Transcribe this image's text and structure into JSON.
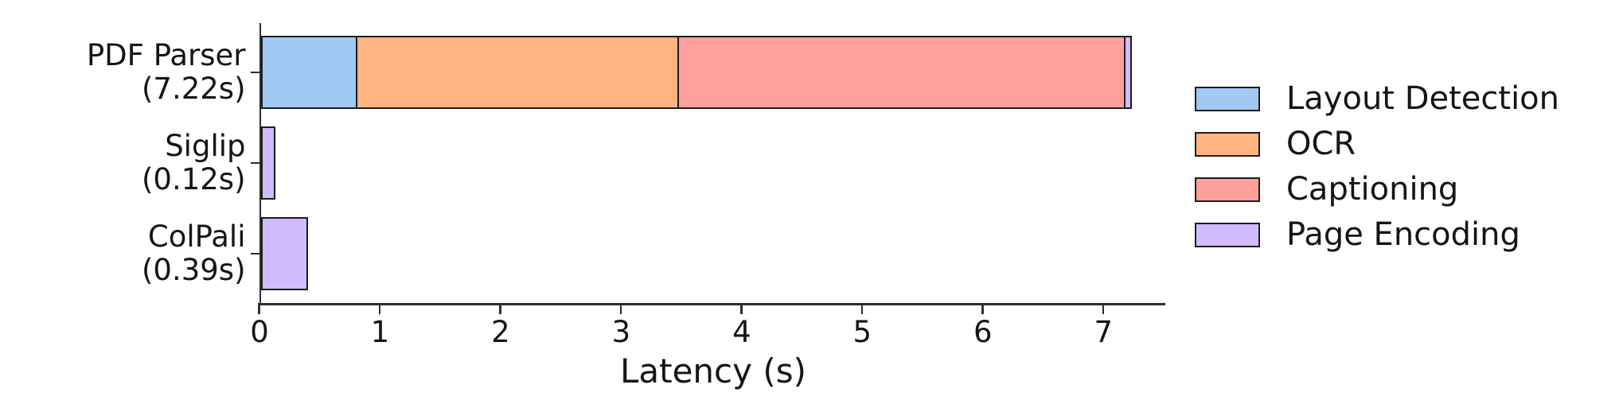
{
  "chart_data": {
    "type": "bar",
    "orientation": "horizontal-stacked",
    "title": "",
    "xlabel": "Latency (s)",
    "ylabel": "",
    "xlim": [
      0,
      7.5
    ],
    "x_ticks": [
      0,
      1,
      2,
      3,
      4,
      5,
      6,
      7
    ],
    "grid": false,
    "background": "#ffffff",
    "axis_color": "#2e2e2e",
    "bar_edge_color": "#1c1c1c",
    "categories": [
      {
        "label": "PDF Parser",
        "sublabel": "(7.22s)",
        "total_seconds": 7.22
      },
      {
        "label": "Siglip",
        "sublabel": "(0.12s)",
        "total_seconds": 0.12
      },
      {
        "label": "ColPali",
        "sublabel": "(0.39s)",
        "total_seconds": 0.39
      }
    ],
    "series": [
      {
        "name": "Layout Detection",
        "color": "#a1c9f4",
        "values": [
          0.8,
          0,
          0
        ]
      },
      {
        "name": "OCR",
        "color": "#ffb482",
        "values": [
          2.67,
          0,
          0
        ]
      },
      {
        "name": "Captioning",
        "color": "#ff9f9b",
        "values": [
          3.7,
          0,
          0
        ]
      },
      {
        "name": "Page Encoding",
        "color": "#d0bbff",
        "values": [
          0.05,
          0.12,
          0.39
        ]
      }
    ],
    "legend": {
      "position": "right",
      "entries": [
        "Layout Detection",
        "OCR",
        "Captioning",
        "Page Encoding"
      ]
    }
  }
}
